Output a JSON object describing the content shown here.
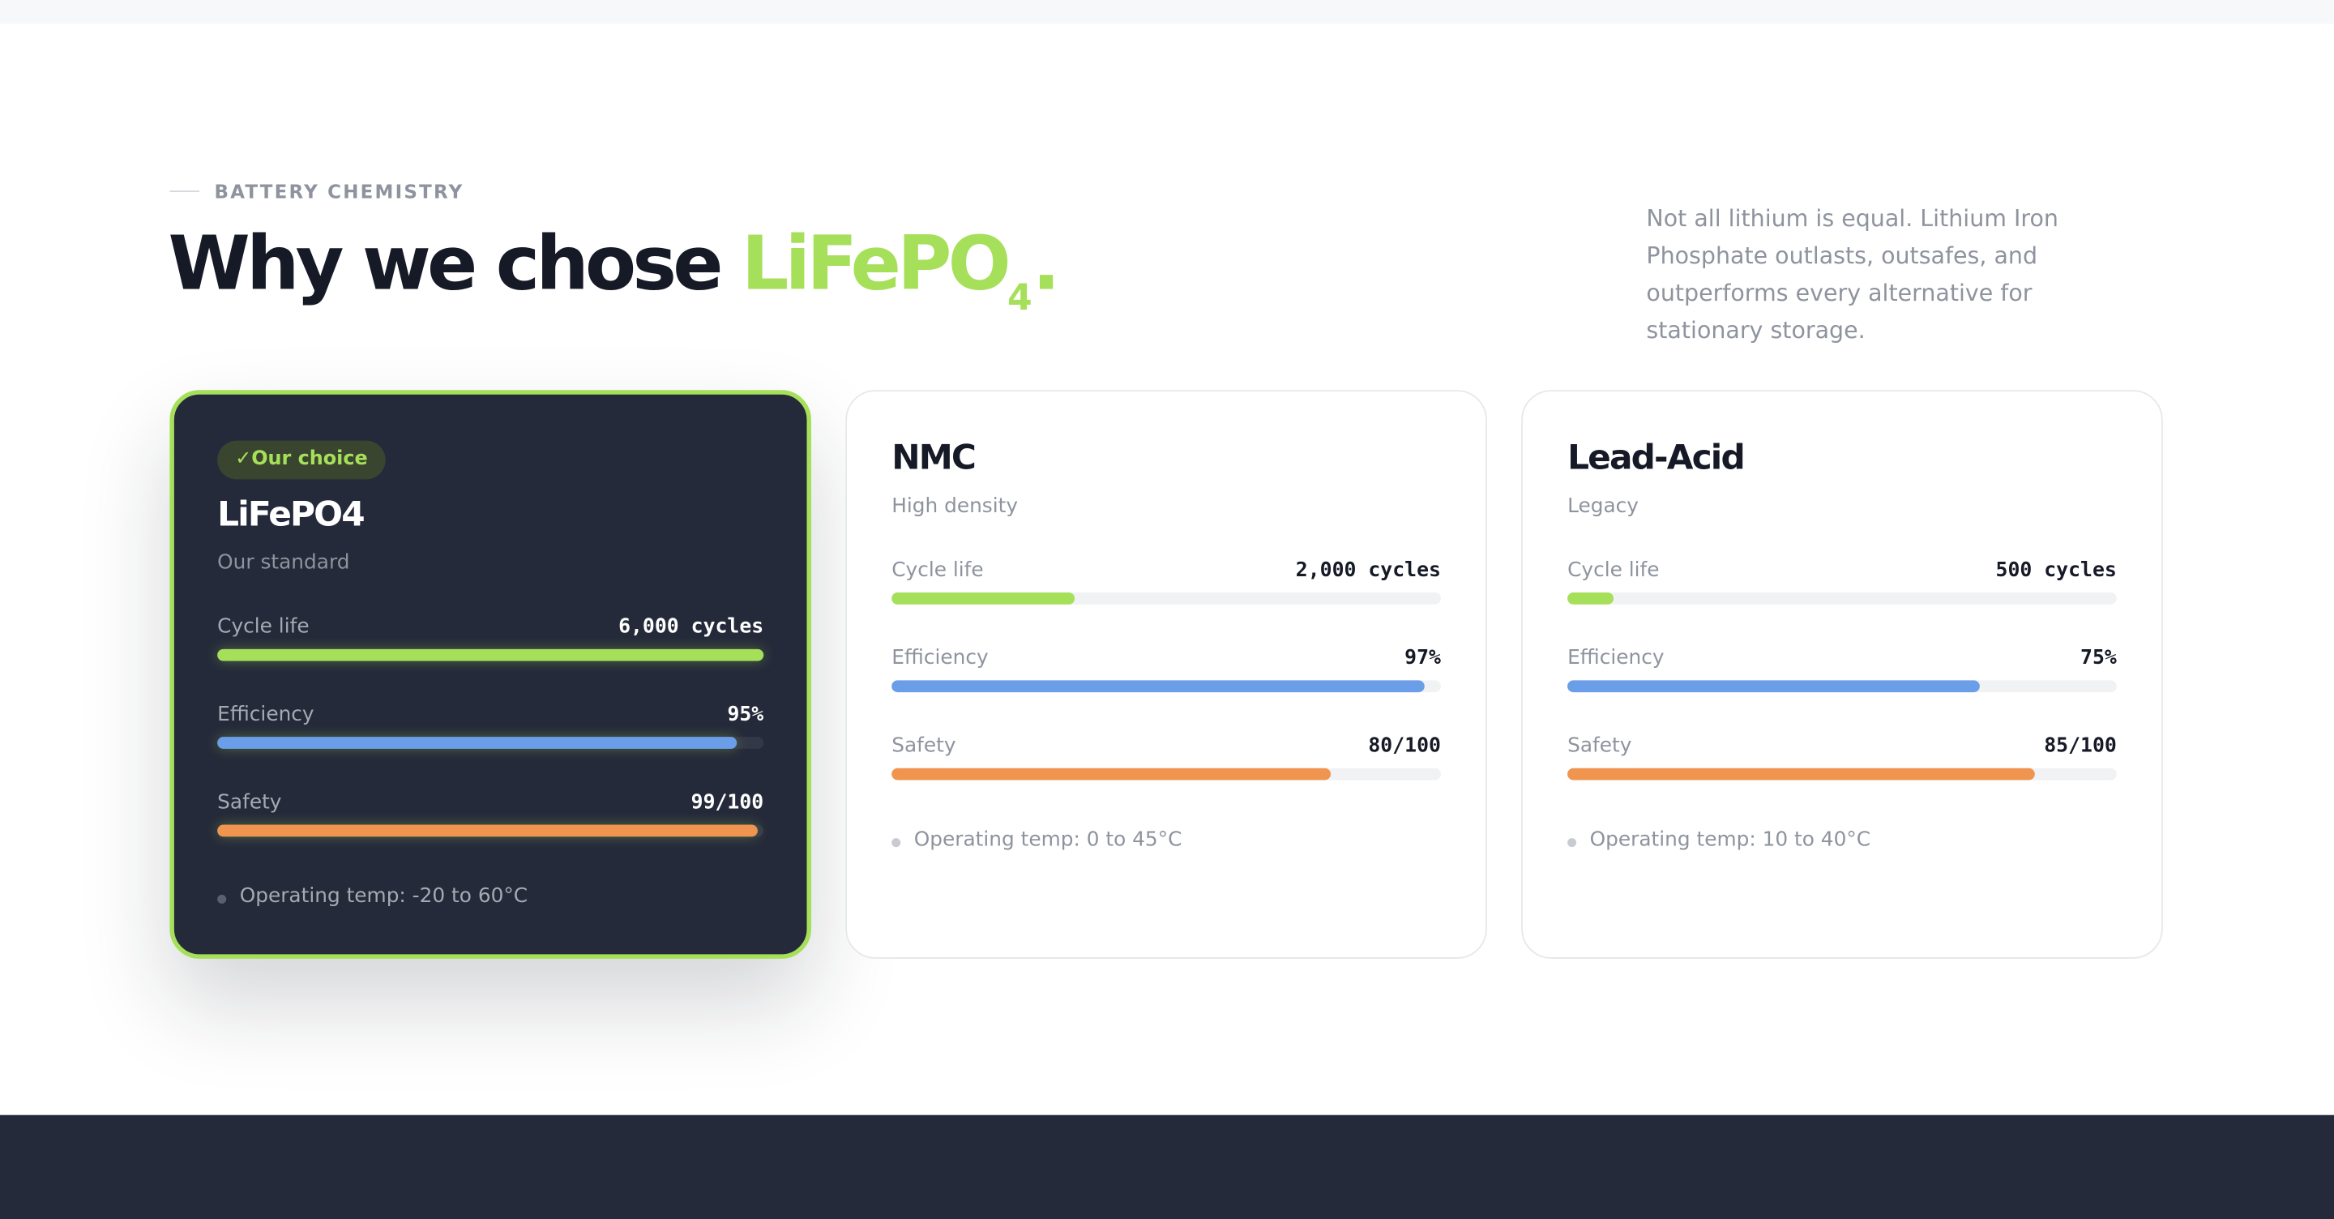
{
  "header": {
    "eyebrow": "BATTERY CHEMISTRY",
    "title": "Why we chose ",
    "title_highlight": "LiFePO",
    "title_subscript": "4",
    "title_end": ".",
    "description": "Not all lithium is equal. Lithium Iron Phosphate outlasts, outsafes, and outperforms every alternative for stationary storage."
  },
  "cards": [
    {
      "badge": "✓Our choice",
      "name": "LiFePO4",
      "subtitle": "Our standard",
      "metrics": [
        {
          "label": "Cycle life",
          "value": 6000,
          "value_label": "6,000 cycles",
          "xlim": [
            0,
            6000
          ]
        },
        {
          "label": "Efficiency",
          "value": 95,
          "value_label": "95%",
          "xlim": [
            0,
            100
          ]
        },
        {
          "label": "Safety",
          "value": 99,
          "value_label": "99/100",
          "xlim": [
            0,
            100
          ]
        }
      ],
      "note": "Operating temp: -20 to 60°C"
    },
    {
      "name": "NMC",
      "subtitle": "High density",
      "metrics": [
        {
          "label": "Cycle life",
          "value": 2000,
          "value_label": "2,000 cycles",
          "xlim": [
            0,
            6000
          ]
        },
        {
          "label": "Efficiency",
          "value": 97,
          "value_label": "97%",
          "xlim": [
            0,
            100
          ]
        },
        {
          "label": "Safety",
          "value": 80,
          "value_label": "80/100",
          "xlim": [
            0,
            100
          ]
        }
      ],
      "note": "Operating temp: 0 to 45°C"
    },
    {
      "name": "Lead-Acid",
      "subtitle": "Legacy",
      "metrics": [
        {
          "label": "Cycle life",
          "value": 500,
          "value_label": "500 cycles",
          "xlim": [
            0,
            6000
          ]
        },
        {
          "label": "Efficiency",
          "value": 75,
          "value_label": "75%",
          "xlim": [
            0,
            100
          ]
        },
        {
          "label": "Safety",
          "value": 85,
          "value_label": "85/100",
          "xlim": [
            0,
            100
          ]
        }
      ],
      "note": "Operating temp: 10 to 40°C"
    }
  ]
}
